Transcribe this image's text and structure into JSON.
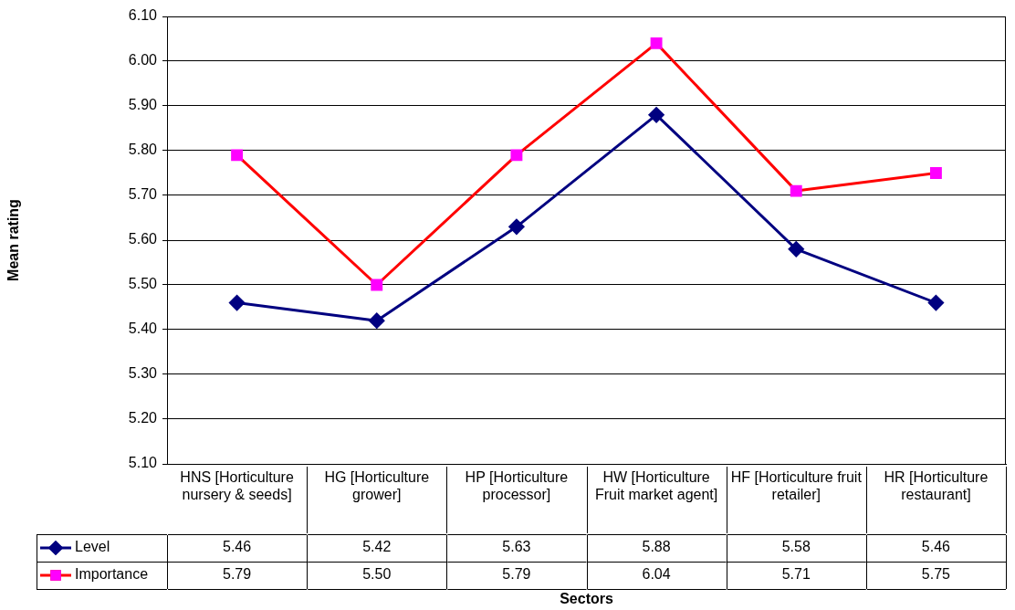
{
  "chart_data": {
    "type": "line",
    "annotations": [
      "Mean rating",
      "Sectors"
    ],
    "categories": [
      "HNS [Horticulture nursery & seeds]",
      "HG [Horticulture grower]",
      "HP [Horticulture processor]",
      "HW [Horticulture Fruit market agent]",
      "HF [Horticulture fruit retailer]",
      "HR [Horticulture restaurant]"
    ],
    "series": [
      {
        "name": "Level",
        "color": "#000080",
        "marker": "diamond",
        "values": [
          5.46,
          5.42,
          5.63,
          5.88,
          5.58,
          5.46
        ],
        "value_labels": [
          "5.46",
          "5.42",
          "5.63",
          "5.88",
          "5.58",
          "5.46"
        ]
      },
      {
        "name": "Importance",
        "color": "#ff0000",
        "colors": [
          "#ff00ff",
          "#ff00ff",
          "#ff00ff",
          "#ff00ff",
          "#ff00ff",
          "#ff00ff"
        ],
        "marker": "square",
        "values": [
          5.79,
          5.5,
          5.79,
          6.04,
          5.71,
          5.75
        ],
        "value_labels": [
          "5.79",
          "5.50",
          "5.79",
          "6.04",
          "5.71",
          "5.75"
        ]
      }
    ],
    "ylim": [
      5.1,
      6.1
    ],
    "yticks": [
      {
        "value": 5.1,
        "label": "5.10"
      },
      {
        "value": 5.2,
        "label": "5.20"
      },
      {
        "value": 5.3,
        "label": "5.30"
      },
      {
        "value": 5.4,
        "label": "5.40"
      },
      {
        "value": 5.5,
        "label": "5.50"
      },
      {
        "value": 5.6,
        "label": "5.60"
      },
      {
        "value": 5.7,
        "label": "5.70"
      },
      {
        "value": 5.8,
        "label": "5.80"
      },
      {
        "value": 5.9,
        "label": "5.90"
      },
      {
        "value": 6.0,
        "label": "6.00"
      },
      {
        "value": 6.1,
        "label": "6.10"
      }
    ],
    "grid": "y",
    "legend": "bottom"
  }
}
